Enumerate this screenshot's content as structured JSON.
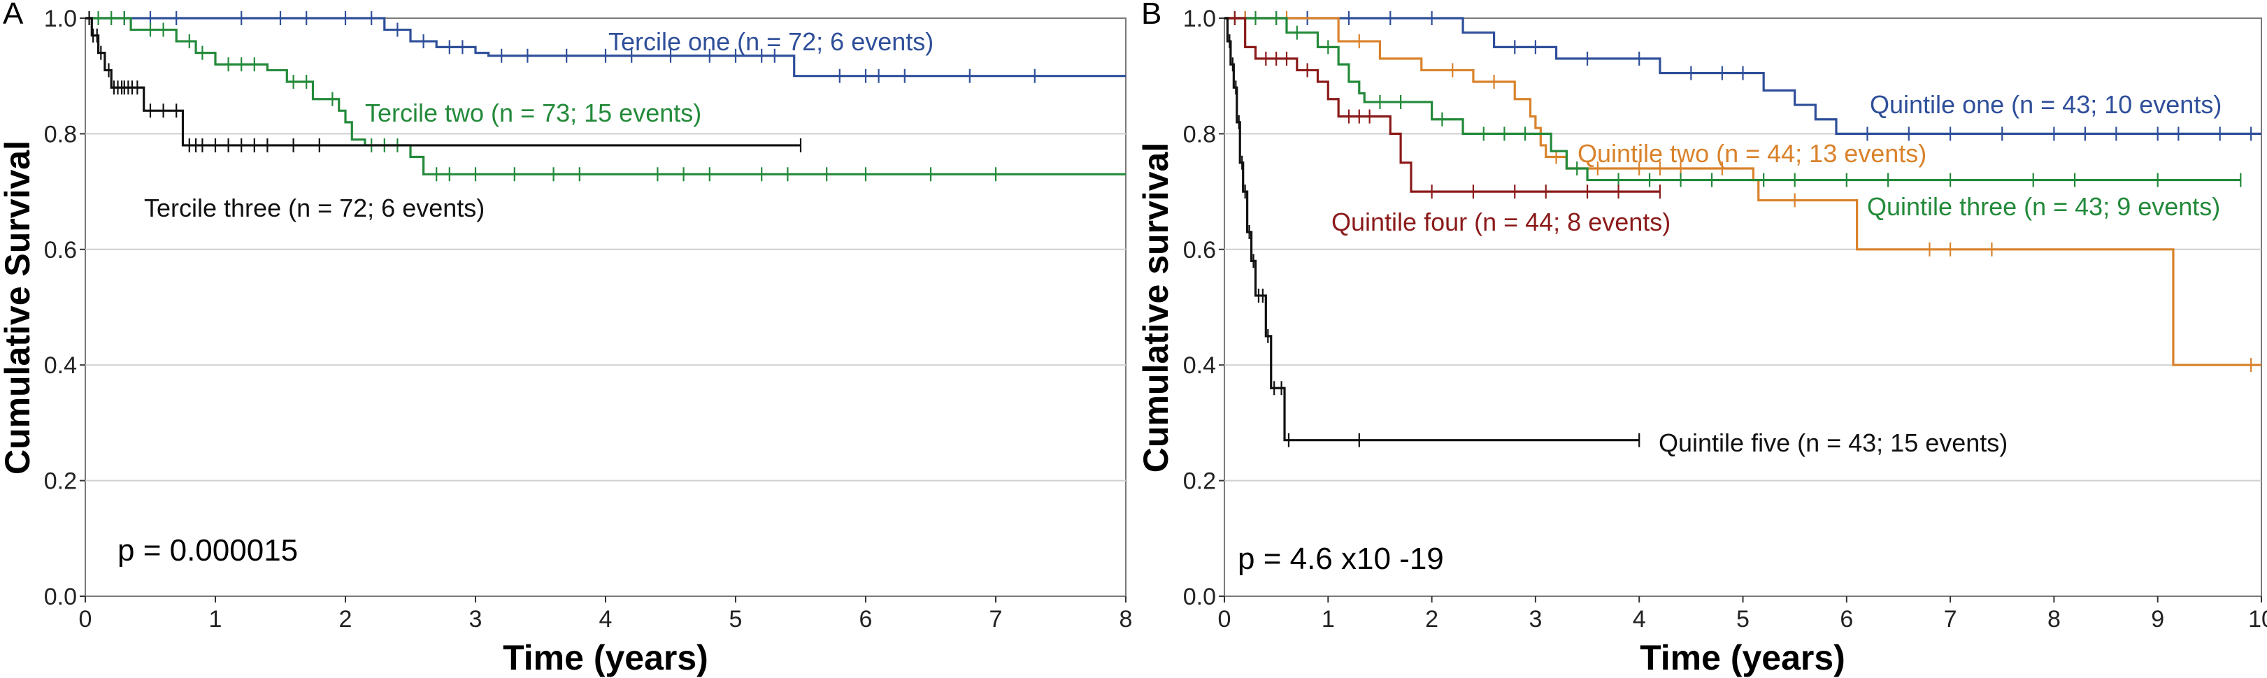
{
  "chart_data": [
    {
      "type": "line",
      "panel": "A",
      "xlabel": "Time (years)",
      "ylabel": "Cumulative Survival",
      "xlim": [
        0,
        8
      ],
      "ylim": [
        0,
        1
      ],
      "xticks": [
        "0",
        "1",
        "2",
        "3",
        "4",
        "5",
        "6",
        "7",
        "8"
      ],
      "yticks": [
        "0.0",
        "0.2",
        "0.4",
        "0.6",
        "0.8",
        "1.0"
      ],
      "pvalue": "p = 0.000015",
      "series": [
        {
          "name": "Tercile one (n = 72; 6 events)",
          "color": "#2f4f9a",
          "steps": [
            [
              0,
              1.0
            ],
            [
              2.3,
              0.98
            ],
            [
              2.5,
              0.96
            ],
            [
              2.7,
              0.95
            ],
            [
              3.0,
              0.94
            ],
            [
              3.1,
              0.935
            ],
            [
              5.45,
              0.9
            ],
            [
              8.0,
              0.9
            ]
          ],
          "censor": [
            0.3,
            0.5,
            0.7,
            1.2,
            1.5,
            1.7,
            2.0,
            2.2,
            2.4,
            2.6,
            2.8,
            2.9,
            3.2,
            3.4,
            3.7,
            4.0,
            4.2,
            4.5,
            4.8,
            5.0,
            5.2,
            5.3,
            5.8,
            6.0,
            6.1,
            6.3,
            6.8,
            7.3
          ]
        },
        {
          "name": "Tercile two (n = 73; 15 events)",
          "color": "#238a3a",
          "steps": [
            [
              0,
              1.0
            ],
            [
              0.35,
              0.98
            ],
            [
              0.7,
              0.96
            ],
            [
              0.85,
              0.94
            ],
            [
              1.0,
              0.92
            ],
            [
              1.4,
              0.91
            ],
            [
              1.55,
              0.89
            ],
            [
              1.75,
              0.86
            ],
            [
              1.95,
              0.84
            ],
            [
              2.0,
              0.82
            ],
            [
              2.05,
              0.79
            ],
            [
              2.15,
              0.78
            ],
            [
              2.5,
              0.76
            ],
            [
              2.6,
              0.73
            ],
            [
              8.0,
              0.73
            ]
          ],
          "censor": [
            0.1,
            0.2,
            0.3,
            0.5,
            0.6,
            0.8,
            0.9,
            1.1,
            1.2,
            1.3,
            1.6,
            1.7,
            1.9,
            2.2,
            2.3,
            2.4,
            2.7,
            2.8,
            3.0,
            3.3,
            3.6,
            3.8,
            4.4,
            4.6,
            4.8,
            5.2,
            5.4,
            5.7,
            6.0,
            6.5,
            7.0
          ]
        },
        {
          "name": "Tercile three (n = 72; 6 events)",
          "color": "#111111",
          "steps": [
            [
              0,
              1.0
            ],
            [
              0.05,
              0.97
            ],
            [
              0.1,
              0.94
            ],
            [
              0.15,
              0.91
            ],
            [
              0.2,
              0.88
            ],
            [
              0.45,
              0.84
            ],
            [
              0.75,
              0.78
            ],
            [
              5.5,
              0.78
            ]
          ],
          "censor": [
            0.03,
            0.06,
            0.09,
            0.12,
            0.18,
            0.22,
            0.25,
            0.28,
            0.3,
            0.33,
            0.36,
            0.4,
            0.5,
            0.6,
            0.7,
            0.8,
            0.85,
            0.9,
            1.0,
            1.1,
            1.2,
            1.3,
            1.4,
            1.6,
            1.8,
            5.5
          ]
        }
      ]
    },
    {
      "type": "line",
      "panel": "B",
      "xlabel": "Time (years)",
      "ylabel": "Cumulative survival",
      "xlim": [
        0,
        10
      ],
      "ylim": [
        0,
        1
      ],
      "xticks": [
        "0",
        "1",
        "2",
        "3",
        "4",
        "5",
        "6",
        "7",
        "8",
        "9",
        "10"
      ],
      "yticks": [
        "0.0",
        "0.2",
        "0.4",
        "0.6",
        "0.8",
        "1.0"
      ],
      "pvalue": "p = 4.6 x10 -19",
      "series": [
        {
          "name": "Quintile one (n = 43; 10 events)",
          "color": "#2f4f9a",
          "steps": [
            [
              0,
              1.0
            ],
            [
              2.3,
              0.975
            ],
            [
              2.6,
              0.95
            ],
            [
              3.2,
              0.93
            ],
            [
              4.2,
              0.905
            ],
            [
              5.2,
              0.875
            ],
            [
              5.5,
              0.85
            ],
            [
              5.7,
              0.825
            ],
            [
              5.9,
              0.8
            ],
            [
              10.0,
              0.8
            ]
          ],
          "censor": [
            0.2,
            0.5,
            0.8,
            1.2,
            1.6,
            2.0,
            2.8,
            3.0,
            3.5,
            4.0,
            4.5,
            4.8,
            5.0,
            6.2,
            6.6,
            7.0,
            7.5,
            8.0,
            8.3,
            8.6,
            9.0,
            9.2,
            9.6,
            9.9
          ]
        },
        {
          "name": "Quintile two (n = 44; 13 events)",
          "color": "#d9822b",
          "steps": [
            [
              0,
              1.0
            ],
            [
              1.1,
              0.96
            ],
            [
              1.5,
              0.93
            ],
            [
              1.9,
              0.91
            ],
            [
              2.4,
              0.89
            ],
            [
              2.8,
              0.86
            ],
            [
              2.95,
              0.83
            ],
            [
              3.0,
              0.81
            ],
            [
              3.05,
              0.78
            ],
            [
              3.1,
              0.76
            ],
            [
              3.3,
              0.74
            ],
            [
              5.1,
              0.72
            ],
            [
              5.15,
              0.685
            ],
            [
              6.1,
              0.6
            ],
            [
              9.15,
              0.4
            ],
            [
              10.0,
              0.4
            ]
          ],
          "censor": [
            0.2,
            0.6,
            1.3,
            2.2,
            2.6,
            3.2,
            3.6,
            4.0,
            4.2,
            4.4,
            4.8,
            5.5,
            6.8,
            7.0,
            7.4,
            9.9
          ]
        },
        {
          "name": "Quintile three (n = 43; 9 events)",
          "color": "#238a3a",
          "steps": [
            [
              0,
              1.0
            ],
            [
              0.6,
              0.975
            ],
            [
              0.9,
              0.95
            ],
            [
              1.1,
              0.92
            ],
            [
              1.2,
              0.89
            ],
            [
              1.3,
              0.87
            ],
            [
              1.35,
              0.855
            ],
            [
              2.0,
              0.825
            ],
            [
              2.3,
              0.8
            ],
            [
              3.15,
              0.77
            ],
            [
              3.3,
              0.74
            ],
            [
              3.5,
              0.72
            ],
            [
              9.8,
              0.72
            ]
          ],
          "censor": [
            0.1,
            0.3,
            0.5,
            0.7,
            1.0,
            1.5,
            1.7,
            2.1,
            2.5,
            2.7,
            2.9,
            3.4,
            3.8,
            4.1,
            4.4,
            4.7,
            5.2,
            5.5,
            6.0,
            6.4,
            7.0,
            7.8,
            8.2,
            9.0,
            9.8
          ]
        },
        {
          "name": "Quintile four (n = 44; 8 events)",
          "color": "#8b1a1a",
          "steps": [
            [
              0,
              1.0
            ],
            [
              0.2,
              0.95
            ],
            [
              0.3,
              0.93
            ],
            [
              0.7,
              0.91
            ],
            [
              0.9,
              0.89
            ],
            [
              1.0,
              0.86
            ],
            [
              1.1,
              0.83
            ],
            [
              1.6,
              0.8
            ],
            [
              1.7,
              0.75
            ],
            [
              1.8,
              0.7
            ],
            [
              4.2,
              0.7
            ]
          ],
          "censor": [
            0.1,
            0.4,
            0.5,
            0.6,
            0.8,
            1.2,
            1.3,
            1.4,
            2.0,
            2.4,
            2.8,
            3.1,
            3.5,
            3.8,
            4.2
          ]
        },
        {
          "name": "Quintile five (n = 43; 15 events)",
          "color": "#111111",
          "steps": [
            [
              0,
              1.0
            ],
            [
              0.03,
              0.96
            ],
            [
              0.06,
              0.92
            ],
            [
              0.09,
              0.88
            ],
            [
              0.12,
              0.82
            ],
            [
              0.15,
              0.75
            ],
            [
              0.18,
              0.7
            ],
            [
              0.22,
              0.63
            ],
            [
              0.26,
              0.58
            ],
            [
              0.3,
              0.52
            ],
            [
              0.4,
              0.45
            ],
            [
              0.45,
              0.36
            ],
            [
              0.58,
              0.27
            ],
            [
              4.0,
              0.27
            ]
          ],
          "censor": [
            0.05,
            0.08,
            0.11,
            0.14,
            0.17,
            0.2,
            0.24,
            0.28,
            0.33,
            0.37,
            0.42,
            0.48,
            0.55,
            0.62,
            1.3,
            4.0
          ]
        }
      ]
    }
  ]
}
